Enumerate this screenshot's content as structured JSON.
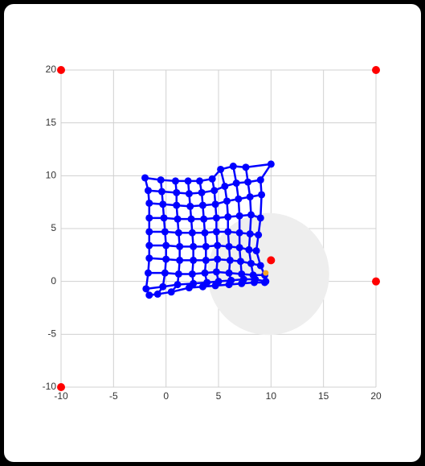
{
  "chart_data": {
    "type": "mesh",
    "xlim": [
      -10,
      20
    ],
    "ylim": [
      -10,
      20
    ],
    "xticks": [
      -10,
      -5,
      0,
      5,
      10,
      15,
      20
    ],
    "yticks": [
      -10,
      -5,
      0,
      5,
      10,
      15,
      20
    ],
    "grid": true,
    "circle": {
      "x": 9.75,
      "y": 0.7,
      "r": 5.8,
      "color": "#eeeeee"
    },
    "mesh": {
      "color": "#0000ff",
      "rows": [
        {
          "x": [
            -2,
            -0.5,
            0.9,
            2.1,
            3.2,
            4.4,
            5.2,
            6.4,
            7.6,
            10
          ],
          "y": [
            9.8,
            9.6,
            9.5,
            9.5,
            9.5,
            9.7,
            10.6,
            10.9,
            10.8,
            11.1
          ]
        },
        {
          "x": [
            -1.7,
            -0.4,
            1,
            2.2,
            3.4,
            4.6,
            5.6,
            6.7,
            7.8,
            9.0
          ],
          "y": [
            8.6,
            8.5,
            8.4,
            8.3,
            8.4,
            8.6,
            9.0,
            9.3,
            9.4,
            9.6
          ]
        },
        {
          "x": [
            -1.6,
            -0.3,
            1,
            2.3,
            3.5,
            4.7,
            5.8,
            6.9,
            8,
            9.1
          ],
          "y": [
            7.4,
            7.3,
            7.2,
            7.1,
            7.2,
            7.3,
            7.6,
            7.8,
            8.0,
            8.2
          ]
        },
        {
          "x": [
            -1.6,
            -0.2,
            1.1,
            2.4,
            3.6,
            4.8,
            5.9,
            7,
            8.1,
            9
          ],
          "y": [
            6.0,
            6.0,
            5.9,
            5.9,
            5.9,
            6.0,
            6.1,
            6.2,
            6.3,
            6.0
          ]
        },
        {
          "x": [
            -1.6,
            -0.1,
            1.2,
            2.5,
            3.7,
            4.8,
            5.9,
            7.0,
            8.0,
            8.8
          ],
          "y": [
            4.7,
            4.7,
            4.6,
            4.6,
            4.6,
            4.7,
            4.7,
            4.6,
            4.5,
            4.4
          ]
        },
        {
          "x": [
            -1.6,
            0,
            1.3,
            2.6,
            3.8,
            4.9,
            6,
            7,
            7.9,
            8.6
          ],
          "y": [
            3.4,
            3.4,
            3.3,
            3.3,
            3.3,
            3.4,
            3.3,
            3.2,
            3.0,
            2.9
          ]
        },
        {
          "x": [
            -1.6,
            0,
            1.3,
            2.6,
            3.8,
            4.9,
            6.1,
            7.1,
            8.1,
            9
          ],
          "y": [
            2.2,
            2.1,
            2.0,
            2.0,
            2.0,
            2.1,
            2.0,
            1.9,
            1.7,
            1.5
          ]
        },
        {
          "x": [
            -1.7,
            -0.1,
            1.2,
            2.5,
            3.7,
            4.8,
            6,
            7.2,
            8.3,
            9.4
          ],
          "y": [
            0.8,
            0.8,
            0.7,
            0.7,
            0.8,
            0.9,
            0.8,
            0.7,
            0.6,
            0.6
          ]
        },
        {
          "x": [
            -1.9,
            -0.3,
            1.1,
            2.6,
            3.9,
            5,
            6.2,
            7.4,
            8.5,
            9.5
          ],
          "y": [
            -0.7,
            -0.5,
            -0.3,
            -0.2,
            -0.1,
            0.0,
            0.1,
            0.2,
            0.2,
            0.0
          ]
        },
        {
          "x": [
            -1.6,
            -0.8,
            0.5,
            2.2,
            3.5,
            4.7,
            6,
            7.2,
            8.4,
            9.4
          ],
          "y": [
            -1.3,
            -1.2,
            -1.0,
            -0.6,
            -0.5,
            -0.4,
            -0.3,
            -0.2,
            -0.1,
            -0.1
          ]
        }
      ]
    },
    "points": {
      "color": "#ff0000",
      "x": [
        10,
        20,
        -10,
        20,
        -10
      ],
      "y": [
        2,
        0,
        20,
        20,
        -10
      ]
    },
    "marker": {
      "color": "#f5a623",
      "x": [
        9.5
      ],
      "y": [
        0.8
      ]
    }
  }
}
